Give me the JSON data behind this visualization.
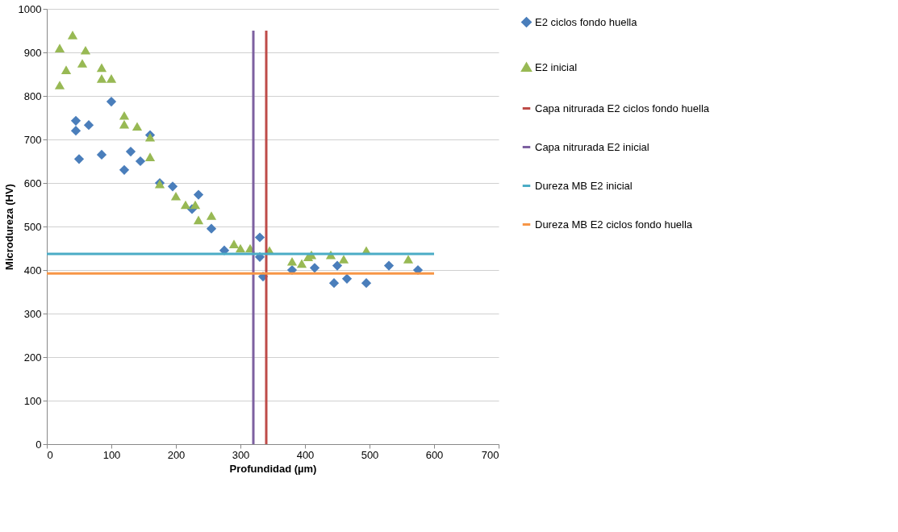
{
  "chart_data": {
    "type": "scatter",
    "xlabel": "Profundidad (µm)",
    "ylabel": "Microdureza (HV)",
    "xlim": [
      0,
      700
    ],
    "xticks": [
      0,
      100,
      200,
      300,
      400,
      500,
      600,
      700
    ],
    "ylim": [
      0,
      1000
    ],
    "yticks": [
      0,
      100,
      200,
      300,
      400,
      500,
      600,
      700,
      800,
      900,
      1000
    ],
    "grid": "y",
    "legend": "right",
    "series": [
      {
        "name": "E2 ciclos fondo huella",
        "type": "scatter",
        "marker": "diamond",
        "color": "#4a7ebb",
        "x": [
          45,
          45,
          50,
          65,
          85,
          100,
          120,
          130,
          145,
          160,
          175,
          195,
          225,
          235,
          255,
          275,
          300,
          330,
          330,
          335,
          380,
          415,
          445,
          450,
          465,
          495,
          530,
          575
        ],
        "values": [
          743,
          720,
          655,
          733,
          665,
          787,
          630,
          672,
          650,
          710,
          600,
          592,
          540,
          573,
          495,
          445,
          null,
          475,
          430,
          385,
          400,
          405,
          370,
          410,
          380,
          370,
          410,
          400
        ]
      },
      {
        "name": "E2 inicial",
        "type": "scatter",
        "marker": "triangle",
        "color": "#98b954",
        "x": [
          20,
          20,
          30,
          40,
          55,
          60,
          85,
          85,
          100,
          120,
          120,
          140,
          160,
          160,
          175,
          200,
          215,
          230,
          235,
          255,
          290,
          300,
          315,
          345,
          380,
          395,
          405,
          410,
          440,
          460,
          495,
          560
        ],
        "values": [
          910,
          825,
          860,
          940,
          875,
          905,
          865,
          840,
          840,
          755,
          735,
          730,
          705,
          660,
          598,
          570,
          550,
          550,
          515,
          525,
          460,
          450,
          450,
          445,
          420,
          415,
          430,
          435,
          435,
          425,
          445,
          425
        ]
      },
      {
        "name": "Capa nitrurada E2 ciclos fondo huella",
        "type": "line",
        "color": "#be4b48",
        "x": [
          340,
          340
        ],
        "values": [
          0,
          950
        ]
      },
      {
        "name": "Capa nitrurada E2 inicial",
        "type": "line",
        "color": "#7d60a0",
        "x": [
          320,
          320
        ],
        "values": [
          0,
          950
        ]
      },
      {
        "name": "Dureza MB E2 inicial",
        "type": "line",
        "color": "#4bacc6",
        "x": [
          0,
          600
        ],
        "values": [
          437,
          437
        ]
      },
      {
        "name": "Dureza MB E2 ciclos fondo huella",
        "type": "line",
        "color": "#f79646",
        "x": [
          0,
          600
        ],
        "values": [
          392,
          392
        ]
      }
    ]
  }
}
